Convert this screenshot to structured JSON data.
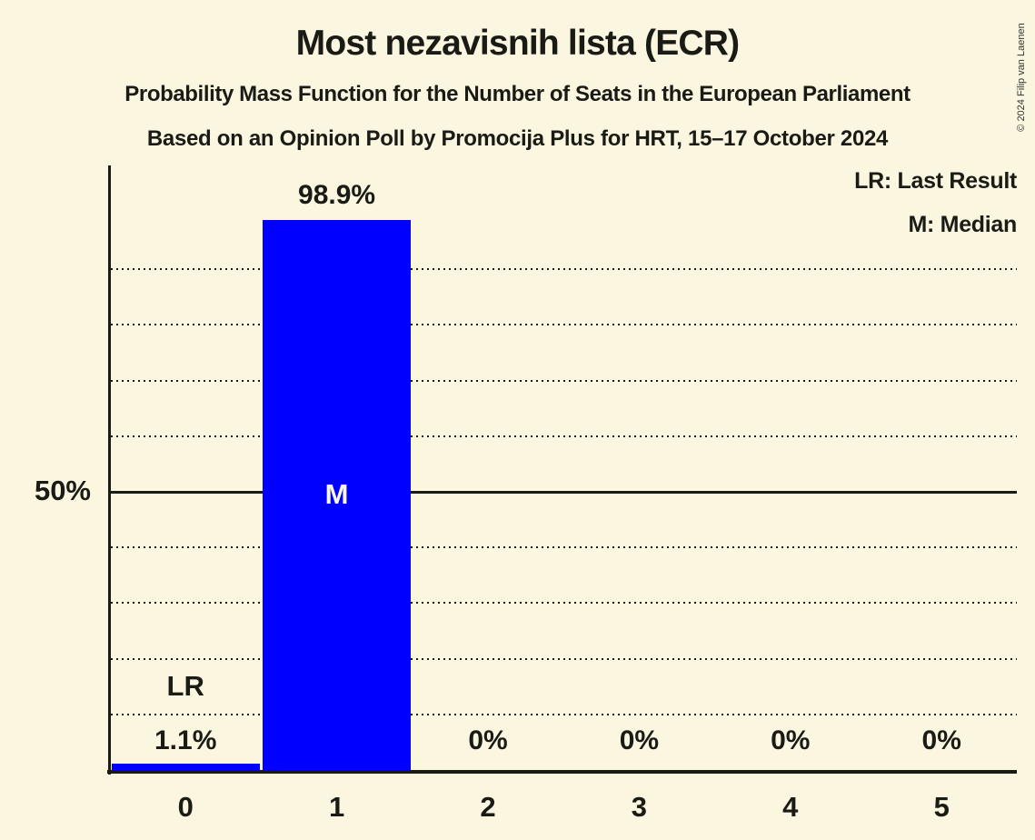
{
  "header": {
    "title": "Most nezavisnih lista (ECR)",
    "subtitle1": "Probability Mass Function for the Number of Seats in the European Parliament",
    "subtitle2": "Based on an Opinion Poll by Promocija Plus for HRT, 15–17 October 2024"
  },
  "legend": {
    "last_result": "LR: Last Result",
    "median": "M: Median"
  },
  "copyright": "© 2024 Filip van Laenen",
  "colors": {
    "background": "#FBF6E0",
    "bar": "#0000FF",
    "text": "#1B1B16",
    "inside_bar_label": "#FBF6E0"
  },
  "chart_data": {
    "type": "bar",
    "title": "Most nezavisnih lista (ECR)",
    "categories": [
      "0",
      "1",
      "2",
      "3",
      "4",
      "5"
    ],
    "values": [
      1.1,
      98.9,
      0,
      0,
      0,
      0
    ],
    "value_labels": [
      "1.1%",
      "98.9%",
      "0%",
      "0%",
      "0%",
      "0%"
    ],
    "annotations": [
      {
        "category_index": 0,
        "text": "LR",
        "placement": "above-bar"
      },
      {
        "category_index": 1,
        "text": "M",
        "placement": "inside-bar"
      }
    ],
    "y_axis": {
      "tick_value": 50,
      "tick_label": "50%",
      "solid_line_at": 50,
      "dotted_gridlines": [
        10,
        20,
        30,
        40,
        60,
        70,
        80,
        90
      ],
      "ylim": [
        0,
        108
      ]
    },
    "grid": "dotted",
    "legend_position": "top-right"
  }
}
